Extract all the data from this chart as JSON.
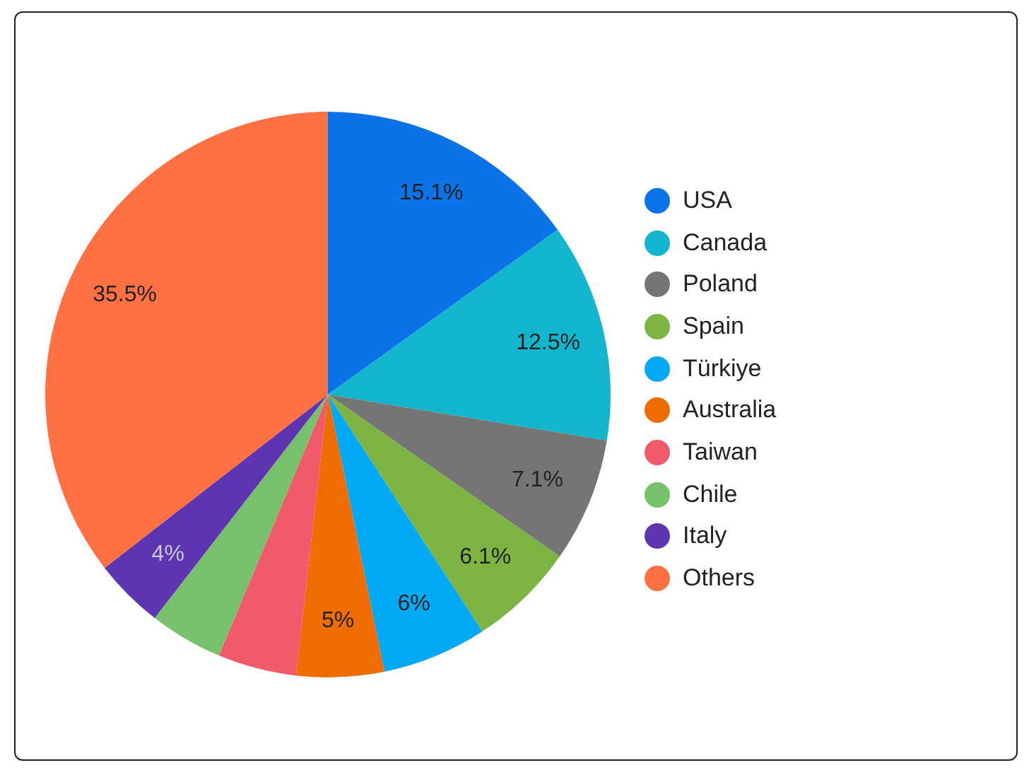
{
  "chart_data": {
    "type": "pie",
    "categories": [
      "USA",
      "Canada",
      "Poland",
      "Spain",
      "Türkiye",
      "Australia",
      "Taiwan",
      "Chile",
      "Italy",
      "Others"
    ],
    "values": [
      15.1,
      12.5,
      7.1,
      6.1,
      6,
      5,
      4.5,
      4.2,
      4,
      35.5
    ],
    "colors": [
      "#0b72e8",
      "#12b5cb",
      "#757575",
      "#7cb342",
      "#03a9f4",
      "#ef6c00",
      "#f05a6b",
      "#77c16c",
      "#5e35b1",
      "#ff7043"
    ],
    "value_labels": [
      "15.1%",
      "12.5%",
      "7.1%",
      "6.1%",
      "6%",
      "5%",
      null,
      null,
      "4%",
      "35.5%"
    ],
    "legend": "right"
  }
}
